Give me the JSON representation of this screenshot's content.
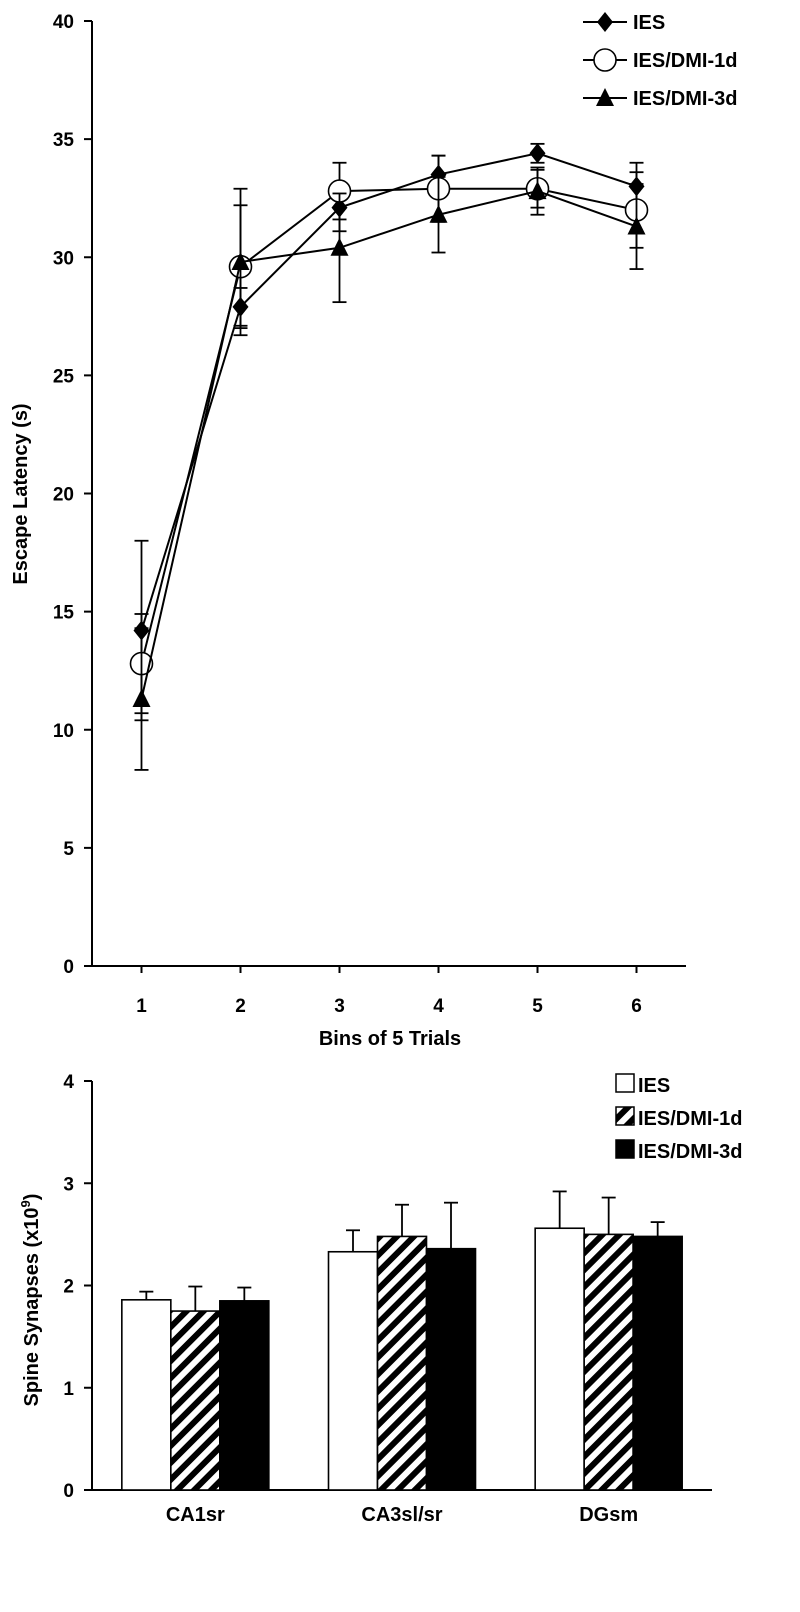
{
  "chart_data": [
    {
      "type": "line",
      "xlabel": "Bins of 5 Trials",
      "ylabel": "Escape Latency (s)",
      "xlim": [
        0.5,
        6.5
      ],
      "ylim": [
        0,
        40
      ],
      "x_ticks": [
        "1",
        "2",
        "3",
        "4",
        "5",
        "6"
      ],
      "y_ticks": [
        "0",
        "5",
        "10",
        "15",
        "20",
        "25",
        "30",
        "35",
        "40"
      ],
      "x": [
        1,
        2,
        3,
        4,
        5,
        6
      ],
      "legend_position": "top-right",
      "series": [
        {
          "name": "IES",
          "marker": "diamond",
          "values": [
            14.2,
            27.9,
            32.1,
            33.5,
            34.4,
            33.0
          ],
          "err": [
            3.8,
            0.8,
            1.0,
            0.8,
            0.4,
            1.0
          ]
        },
        {
          "name": "IES/DMI-1d",
          "marker": "circle",
          "values": [
            12.8,
            29.6,
            32.8,
            32.9,
            32.9,
            32.0
          ],
          "err": [
            2.1,
            2.6,
            1.2,
            1.4,
            0.8,
            1.6
          ]
        },
        {
          "name": "IES/DMI-3d",
          "marker": "triangle",
          "values": [
            11.3,
            29.8,
            30.4,
            31.8,
            32.8,
            31.3
          ],
          "err": [
            3.0,
            3.1,
            2.3,
            1.6,
            1.0,
            1.8
          ]
        }
      ]
    },
    {
      "type": "bar",
      "xlabel": "",
      "ylabel": "Spine Synapses (x10",
      "ylabel_sup": "9",
      "ylabel_end": ")",
      "ylim": [
        0,
        4
      ],
      "y_ticks": [
        "0",
        "1",
        "2",
        "3",
        "4"
      ],
      "categories": [
        "CA1sr",
        "CA3sl/sr",
        "DGsm"
      ],
      "legend_position": "top-right",
      "series": [
        {
          "name": "IES",
          "fill": "white",
          "values": [
            1.86,
            2.33,
            2.56
          ],
          "err": [
            0.08,
            0.21,
            0.36
          ]
        },
        {
          "name": "IES/DMI-1d",
          "fill": "hatched",
          "values": [
            1.75,
            2.48,
            2.5
          ],
          "err": [
            0.24,
            0.31,
            0.36
          ]
        },
        {
          "name": "IES/DMI-3d",
          "fill": "black",
          "values": [
            1.85,
            2.36,
            2.48
          ],
          "err": [
            0.13,
            0.45,
            0.14
          ]
        }
      ]
    }
  ]
}
